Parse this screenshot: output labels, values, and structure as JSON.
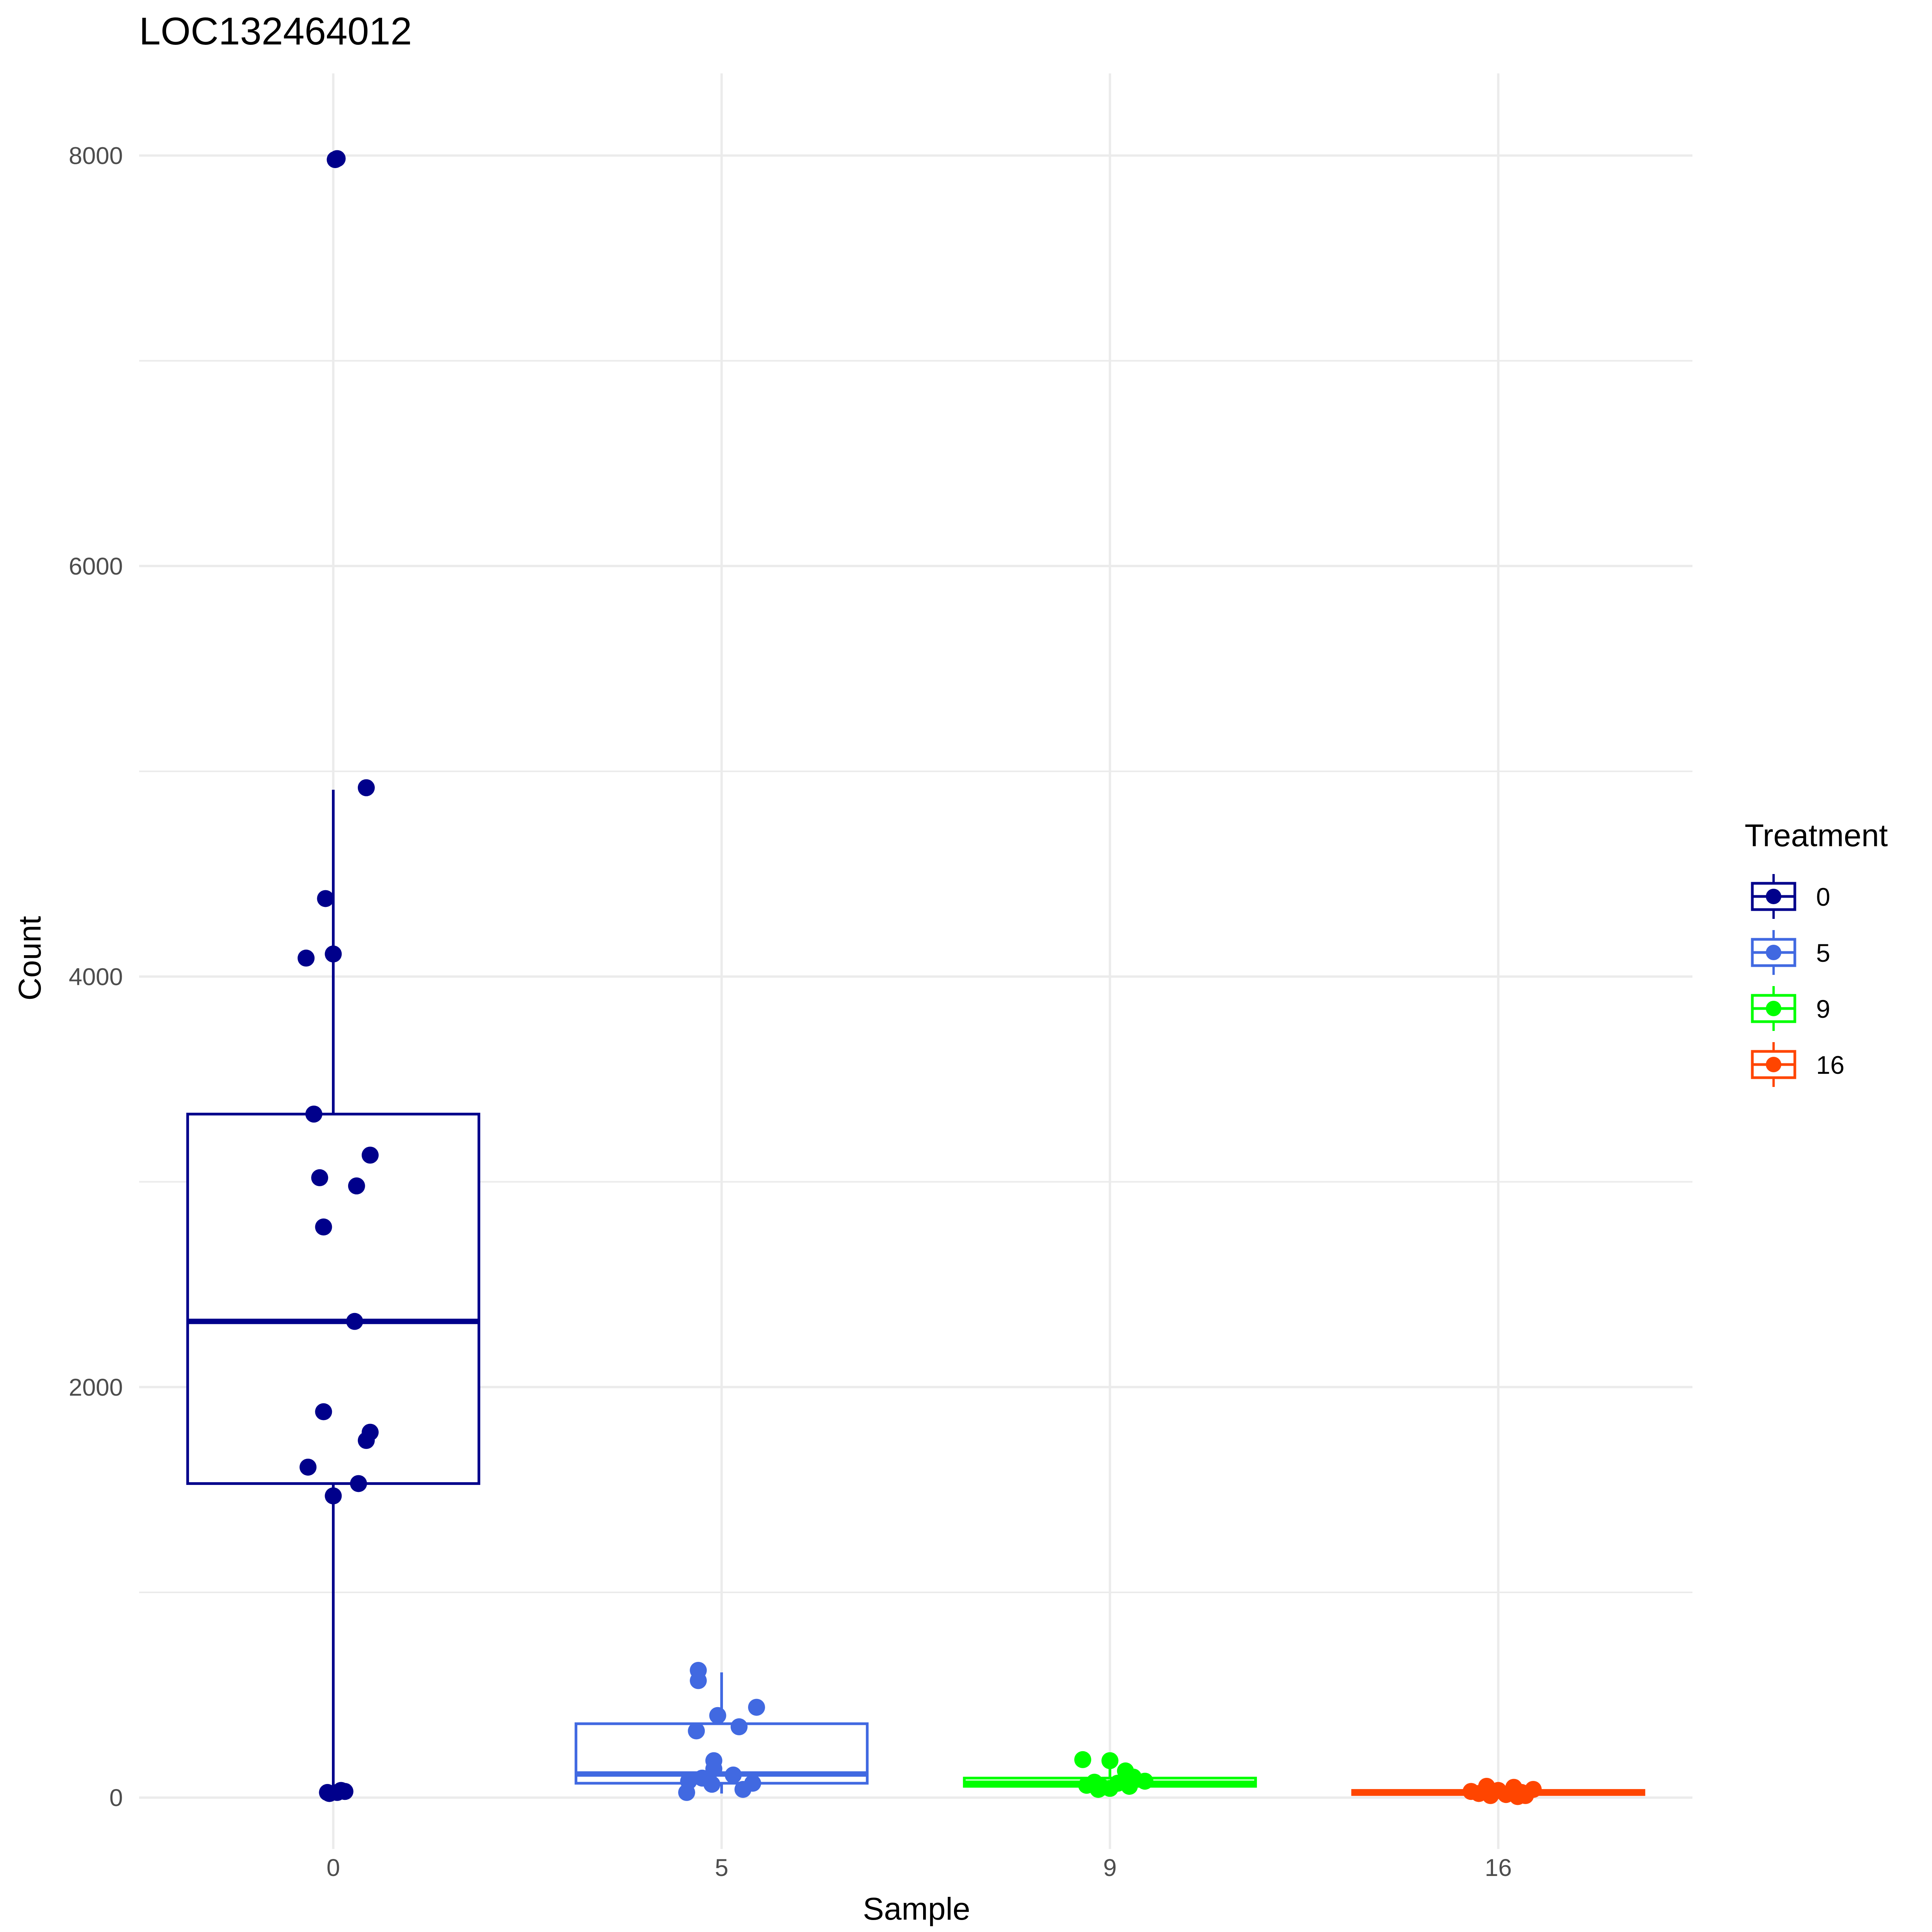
{
  "chart_data": {
    "type": "boxplot",
    "title": "LOC132464012",
    "xlabel": "Sample",
    "ylabel": "Count",
    "categories": [
      "0",
      "5",
      "9",
      "16"
    ],
    "ylim": [
      -250,
      8400
    ],
    "yticks": [
      0,
      2000,
      4000,
      6000,
      8000
    ],
    "grid": true,
    "legend": {
      "title": "Treatment",
      "position": "right",
      "entries": [
        "0",
        "5",
        "9",
        "16"
      ]
    },
    "series": [
      {
        "name": "0",
        "color": "#00008B",
        "box": {
          "min": 20,
          "q1": 1530,
          "median": 2320,
          "q3": 3330,
          "max": 4910
        },
        "points": [
          {
            "x": 0.005,
            "y": 7980
          },
          {
            "x": 0.01,
            "y": 7985
          },
          {
            "x": 0.085,
            "y": 4920
          },
          {
            "x": -0.02,
            "y": 4380
          },
          {
            "x": -0.07,
            "y": 4090
          },
          {
            "x": 0.0,
            "y": 4110
          },
          {
            "x": -0.05,
            "y": 3330
          },
          {
            "x": 0.095,
            "y": 3130
          },
          {
            "x": -0.035,
            "y": 3020
          },
          {
            "x": 0.06,
            "y": 2980
          },
          {
            "x": -0.025,
            "y": 2780
          },
          {
            "x": 0.055,
            "y": 2320
          },
          {
            "x": -0.025,
            "y": 1880
          },
          {
            "x": 0.095,
            "y": 1780
          },
          {
            "x": 0.085,
            "y": 1740
          },
          {
            "x": -0.065,
            "y": 1610
          },
          {
            "x": 0.065,
            "y": 1530
          },
          {
            "x": 0.0,
            "y": 1470
          },
          {
            "x": -0.015,
            "y": 25
          },
          {
            "x": 0.01,
            "y": 25
          },
          {
            "x": 0.02,
            "y": 35
          },
          {
            "x": 0.03,
            "y": 30
          },
          {
            "x": -0.01,
            "y": 20
          }
        ]
      },
      {
        "name": "5",
        "color": "#4169E1",
        "box": {
          "min": 20,
          "q1": 70,
          "median": 115,
          "q3": 360,
          "max": 610
        },
        "points": [
          {
            "x": -0.06,
            "y": 620
          },
          {
            "x": -0.06,
            "y": 570
          },
          {
            "x": 0.09,
            "y": 440
          },
          {
            "x": -0.01,
            "y": 400
          },
          {
            "x": 0.045,
            "y": 345
          },
          {
            "x": -0.065,
            "y": 325
          },
          {
            "x": -0.02,
            "y": 180
          },
          {
            "x": -0.02,
            "y": 140
          },
          {
            "x": 0.03,
            "y": 110
          },
          {
            "x": -0.05,
            "y": 95
          },
          {
            "x": -0.085,
            "y": 80
          },
          {
            "x": 0.08,
            "y": 70
          },
          {
            "x": -0.025,
            "y": 65
          },
          {
            "x": 0.055,
            "y": 40
          },
          {
            "x": -0.09,
            "y": 25
          }
        ]
      },
      {
        "name": "9",
        "color": "#00FF00",
        "box": {
          "min": 40,
          "q1": 55,
          "median": 70,
          "q3": 95,
          "max": 180
        },
        "points": [
          {
            "x": -0.07,
            "y": 185
          },
          {
            "x": 0.0,
            "y": 180
          },
          {
            "x": 0.04,
            "y": 130
          },
          {
            "x": 0.06,
            "y": 100
          },
          {
            "x": 0.09,
            "y": 80
          },
          {
            "x": -0.04,
            "y": 75
          },
          {
            "x": 0.02,
            "y": 70
          },
          {
            "x": -0.06,
            "y": 60
          },
          {
            "x": 0.05,
            "y": 55
          },
          {
            "x": -0.02,
            "y": 50
          },
          {
            "x": 0.0,
            "y": 45
          },
          {
            "x": -0.03,
            "y": 40
          }
        ]
      },
      {
        "name": "16",
        "color": "#FF4500",
        "box": {
          "min": 5,
          "q1": 15,
          "median": 25,
          "q3": 35,
          "max": 60
        },
        "points": [
          {
            "x": -0.03,
            "y": 55
          },
          {
            "x": 0.04,
            "y": 50
          },
          {
            "x": 0.09,
            "y": 40
          },
          {
            "x": -0.07,
            "y": 30
          },
          {
            "x": 0.0,
            "y": 35
          },
          {
            "x": 0.06,
            "y": 25
          },
          {
            "x": -0.05,
            "y": 20
          },
          {
            "x": 0.02,
            "y": 15
          },
          {
            "x": 0.07,
            "y": 10
          },
          {
            "x": -0.02,
            "y": 10
          },
          {
            "x": 0.05,
            "y": 5
          }
        ]
      }
    ]
  }
}
